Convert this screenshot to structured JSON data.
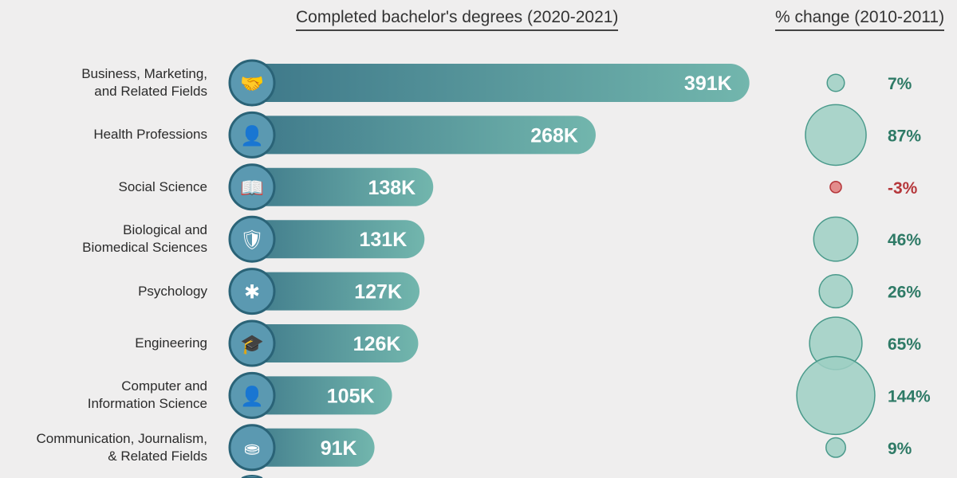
{
  "chart_data": {
    "type": "bar",
    "title": "Completed bachelor's degrees (2020-2021)",
    "secondary_title": "% change (2010-2011)",
    "unit": "K",
    "categories": [
      "Business, Marketing,\nand Related Fields",
      "Health Professions",
      "Social Science",
      "Biological and\nBiomedical Sciences",
      "Psychology",
      "Engineering",
      "Computer and\nInformation Science",
      "Communication, Journalism,\n& Related Fields"
    ],
    "icons": [
      "handshake-icon",
      "doctor-icon",
      "book-icon",
      "shield-virus-icon",
      "brain-head-icon",
      "graduation-cap-icon",
      "programmer-icon",
      "meeting-table-icon"
    ],
    "values": [
      391,
      268,
      138,
      131,
      127,
      126,
      105,
      91
    ],
    "value_labels": [
      "391K",
      "268K",
      "138K",
      "131K",
      "127K",
      "126K",
      "105K",
      "91K"
    ],
    "pct_change": [
      7,
      87,
      -3,
      46,
      26,
      65,
      144,
      9
    ],
    "pct_labels": [
      "7%",
      "87%",
      "-3%",
      "46%",
      "26%",
      "65%",
      "144%",
      "9%"
    ],
    "colors": {
      "bar_start": "#3d7789",
      "bar_end": "#72b6ad",
      "icon_fill": "#5b99b1",
      "icon_border": "#2a6377",
      "bubble_fill": "#9dcfc3",
      "bubble_stroke": "#4a9a8b",
      "positive": "#2e7a66",
      "negative": "#b5363a",
      "negative_fill": "#e07a7a"
    }
  }
}
